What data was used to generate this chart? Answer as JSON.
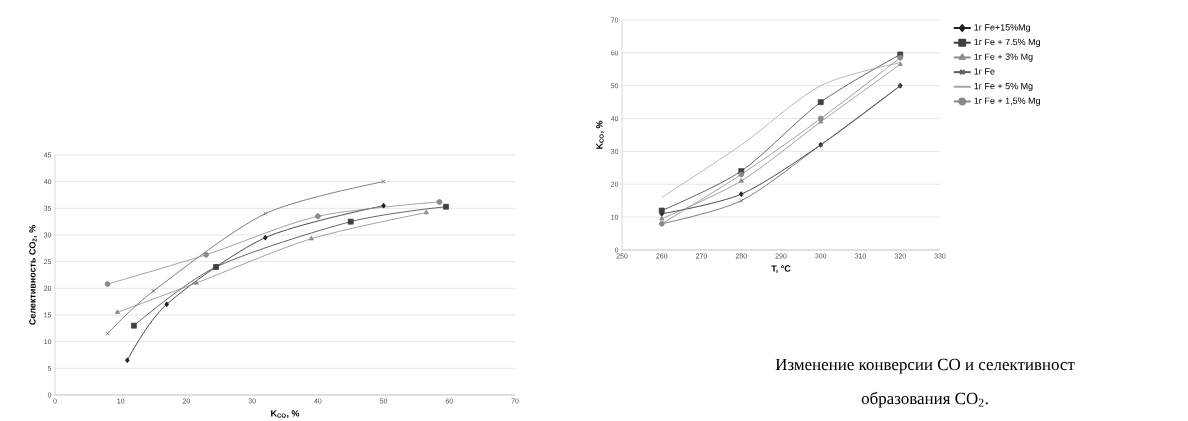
{
  "chart_data": [
    {
      "type": "line",
      "xlabel": "K$_{CO}$, %",
      "ylabel": "Селективность CO$_{2}$, %",
      "xlim": [
        0,
        70
      ],
      "xticks": [
        0,
        10,
        20,
        30,
        40,
        50,
        60,
        70
      ],
      "ylim": [
        0,
        45
      ],
      "yticks": [
        0,
        5,
        10,
        15,
        20,
        25,
        30,
        35,
        40,
        45
      ],
      "grid": "y",
      "legend": false,
      "series": [
        {
          "color": "#1f1f1f",
          "marker": "diamond",
          "x": [
            11,
            17,
            32,
            50
          ],
          "values": [
            6.5,
            17,
            29.5,
            35.5
          ]
        },
        {
          "color": "#404040",
          "marker": "square",
          "x": [
            12,
            24.5,
            45,
            59.5
          ],
          "values": [
            13,
            24,
            32.5,
            35.3
          ]
        },
        {
          "color": "#8c8c8c",
          "marker": "triangle",
          "x": [
            9.5,
            21.5,
            39,
            56.5
          ],
          "values": [
            15.5,
            21,
            29.3,
            34.2
          ]
        },
        {
          "color": "#606060",
          "marker": "cross",
          "x": [
            8,
            15,
            32,
            50
          ],
          "values": [
            11.5,
            19.5,
            34,
            40
          ]
        },
        {
          "color": "#8a8a8a",
          "marker": "circle",
          "x": [
            8,
            23,
            40,
            58.5
          ],
          "values": [
            20.8,
            26.3,
            33.5,
            36.2
          ]
        }
      ]
    },
    {
      "type": "line",
      "xlabel": "T, °C",
      "ylabel": "K$_{CO}$, %",
      "xlim": [
        250,
        330
      ],
      "xticks": [
        250,
        260,
        270,
        280,
        290,
        300,
        310,
        320,
        330
      ],
      "ylim": [
        0,
        70
      ],
      "yticks": [
        0,
        10,
        20,
        30,
        40,
        50,
        60,
        70
      ],
      "grid": "y",
      "legend": "right",
      "annotations": [
        "Изменение конверсии CO и селективност",
        "образования CO$_{2}$."
      ],
      "x": [
        260,
        280,
        300,
        320
      ],
      "series": [
        {
          "name": "1г Fe+15%Mg",
          "color": "#1f1f1f",
          "marker": "diamond",
          "values": [
            11,
            17,
            32,
            50
          ]
        },
        {
          "name": "1г Fe + 7.5% Mg",
          "color": "#404040",
          "marker": "square",
          "values": [
            12,
            24,
            45,
            59.5
          ]
        },
        {
          "name": "1г Fe + 3% Mg",
          "color": "#8c8c8c",
          "marker": "triangle",
          "values": [
            9.5,
            21,
            39,
            56.5
          ]
        },
        {
          "name": "1г Fe",
          "color": "#606060",
          "marker": "cross",
          "values": [
            8,
            15,
            32,
            50
          ]
        },
        {
          "name": "1г Fe + 5% Mg",
          "color": "#a6a6a6",
          "marker": "none",
          "values": [
            16,
            32,
            50,
            57
          ]
        },
        {
          "name": "1г Fe + 1,5% Mg",
          "color": "#8a8a8a",
          "marker": "circle",
          "values": [
            8,
            23,
            40,
            58.5
          ]
        }
      ]
    }
  ]
}
